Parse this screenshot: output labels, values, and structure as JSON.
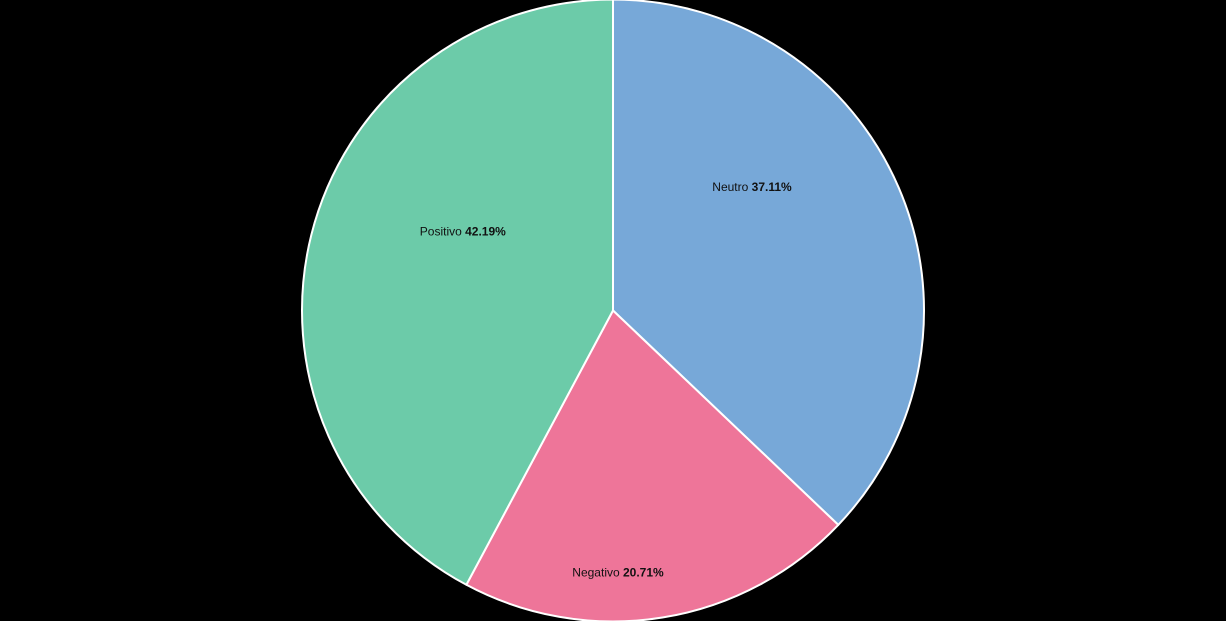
{
  "background_color": "#000000",
  "chart_data": {
    "type": "pie",
    "title": "",
    "legend": "none",
    "direction": "clockwise",
    "start_angle": "12-o-clock",
    "stroke_color": "#ffffff",
    "label_text_color": "#111111",
    "labels_position": "inside",
    "slices": [
      {
        "label": "Neutro",
        "value": 37.11,
        "display": "37.11%",
        "color": "#77a8d8"
      },
      {
        "label": "Negativo",
        "value": 20.71,
        "display": "20.71%",
        "color": "#ee7599"
      },
      {
        "label": "Positivo",
        "value": 42.19,
        "display": "42.19%",
        "color": "#6ccba9"
      }
    ]
  }
}
